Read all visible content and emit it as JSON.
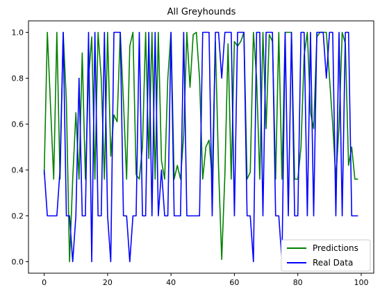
{
  "chart_data": {
    "type": "line",
    "title": "All Greyhounds",
    "xlabel": "",
    "ylabel": "",
    "xlim": [
      -4.95,
      103.95
    ],
    "ylim": [
      -0.05,
      1.05
    ],
    "x_ticks": [
      0,
      20,
      40,
      60,
      80,
      100
    ],
    "y_ticks": [
      0.0,
      0.2,
      0.4,
      0.6,
      0.8,
      1.0
    ],
    "x_tick_labels": [
      "0",
      "20",
      "40",
      "60",
      "80",
      "100"
    ],
    "y_tick_labels": [
      "0.0",
      "0.2",
      "0.4",
      "0.6",
      "0.8",
      "1.0"
    ],
    "grid": false,
    "legend_position": "lower right",
    "series": [
      {
        "name": "Predictions",
        "color": "#008000",
        "x": [
          0,
          1,
          2,
          3,
          4,
          5,
          6,
          7,
          8,
          9,
          10,
          11,
          12,
          13,
          14,
          15,
          16,
          17,
          18,
          19,
          20,
          21,
          22,
          23,
          24,
          25,
          26,
          27,
          28,
          29,
          30,
          31,
          32,
          33,
          34,
          35,
          36,
          37,
          38,
          39,
          40,
          41,
          42,
          43,
          44,
          45,
          46,
          47,
          48,
          49,
          50,
          51,
          52,
          53,
          54,
          55,
          56,
          57,
          58,
          59,
          60,
          61,
          62,
          63,
          64,
          65,
          66,
          67,
          68,
          69,
          70,
          71,
          72,
          73,
          74,
          75,
          76,
          77,
          78,
          79,
          80,
          81,
          82,
          83,
          84,
          85,
          86,
          87,
          88,
          89,
          90,
          91,
          92,
          93,
          94,
          95,
          96,
          97,
          98,
          99
        ],
        "values": [
          0.38,
          1.0,
          0.68,
          0.36,
          1.0,
          0.36,
          1.0,
          0.7,
          0.0,
          0.36,
          0.65,
          0.36,
          0.91,
          0.36,
          0.8,
          0.98,
          0.36,
          1.0,
          0.8,
          0.36,
          1.0,
          0.46,
          0.64,
          0.61,
          1.0,
          0.7,
          0.36,
          0.94,
          1.0,
          0.38,
          0.36,
          0.5,
          1.0,
          0.45,
          1.0,
          0.36,
          1.0,
          0.44,
          0.36,
          0.8,
          1.0,
          0.36,
          0.42,
          0.36,
          0.55,
          1.0,
          0.76,
          0.99,
          1.0,
          0.8,
          0.36,
          0.5,
          0.53,
          0.36,
          0.96,
          0.41,
          0.01,
          0.38,
          0.95,
          0.36,
          0.96,
          0.94,
          0.96,
          1.0,
          0.36,
          0.39,
          1.0,
          0.8,
          0.36,
          1.0,
          0.58,
          0.99,
          0.96,
          0.36,
          1.0,
          0.36,
          1.0,
          1.0,
          1.0,
          0.36,
          0.36,
          0.5,
          0.9,
          1.0,
          0.65,
          0.58,
          0.98,
          1.0,
          1.0,
          1.0,
          0.8,
          0.6,
          0.36,
          0.59,
          1.0,
          0.95,
          0.42,
          0.5,
          0.36,
          0.36
        ]
      },
      {
        "name": "Real Data",
        "color": "#0000ff",
        "x": [
          0,
          1,
          2,
          3,
          4,
          5,
          6,
          7,
          8,
          9,
          10,
          11,
          12,
          13,
          14,
          15,
          16,
          17,
          18,
          19,
          20,
          21,
          22,
          23,
          24,
          25,
          26,
          27,
          28,
          29,
          30,
          31,
          32,
          33,
          34,
          35,
          36,
          37,
          38,
          39,
          40,
          41,
          42,
          43,
          44,
          45,
          46,
          47,
          48,
          49,
          50,
          51,
          52,
          53,
          54,
          55,
          56,
          57,
          58,
          59,
          60,
          61,
          62,
          63,
          64,
          65,
          66,
          67,
          68,
          69,
          70,
          71,
          72,
          73,
          74,
          75,
          76,
          77,
          78,
          79,
          80,
          81,
          82,
          83,
          84,
          85,
          86,
          87,
          88,
          89,
          90,
          91,
          92,
          93,
          94,
          95,
          96,
          97,
          98,
          99
        ],
        "values": [
          0.4,
          0.2,
          0.2,
          0.2,
          0.2,
          0.4,
          1.0,
          0.2,
          0.2,
          0.0,
          0.2,
          0.8,
          0.2,
          0.2,
          1.0,
          0.0,
          1.0,
          0.2,
          0.2,
          1.0,
          0.2,
          0.0,
          1.0,
          1.0,
          1.0,
          0.2,
          0.2,
          0.0,
          0.2,
          0.2,
          1.0,
          0.2,
          0.2,
          1.0,
          0.2,
          1.0,
          0.2,
          0.4,
          0.2,
          0.2,
          1.0,
          0.2,
          0.2,
          0.2,
          1.0,
          0.2,
          0.2,
          0.2,
          0.2,
          0.2,
          1.0,
          1.0,
          1.0,
          0.2,
          1.0,
          1.0,
          0.8,
          1.0,
          1.0,
          1.0,
          0.2,
          1.0,
          1.0,
          1.0,
          0.2,
          0.2,
          0.0,
          1.0,
          1.0,
          0.2,
          1.0,
          1.0,
          1.0,
          0.2,
          0.2,
          0.0,
          1.0,
          0.2,
          1.0,
          0.2,
          0.2,
          1.0,
          1.0,
          0.2,
          1.0,
          0.2,
          1.0,
          1.0,
          1.0,
          0.8,
          1.0,
          1.0,
          0.2,
          1.0,
          0.2,
          1.0,
          1.0,
          0.2,
          0.2,
          0.2
        ]
      }
    ]
  }
}
